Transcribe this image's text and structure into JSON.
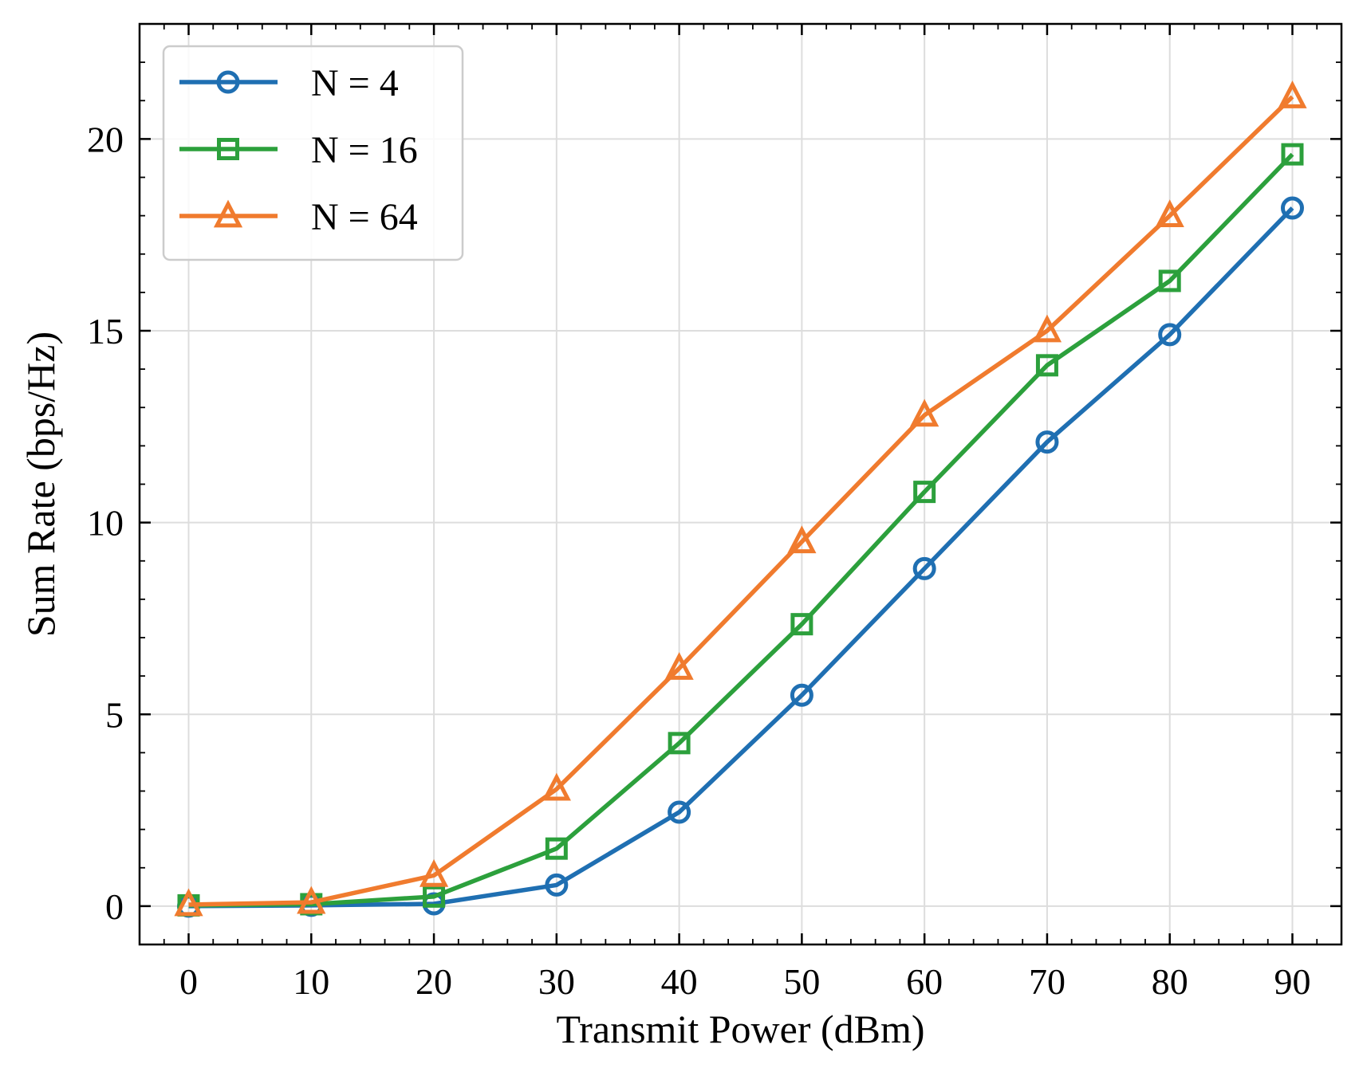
{
  "chart_data": {
    "type": "line",
    "xlabel": "Transmit Power (dBm)",
    "ylabel": "Sum Rate (bps/Hz)",
    "x": [
      0,
      10,
      20,
      30,
      40,
      50,
      60,
      70,
      80,
      90
    ],
    "xticks": [
      0,
      10,
      20,
      30,
      40,
      50,
      60,
      70,
      80,
      90
    ],
    "yticks": [
      0,
      5,
      10,
      15,
      20
    ],
    "xlim": [
      -4,
      94
    ],
    "ylim": [
      -1,
      23
    ],
    "grid": true,
    "legend_position": "top-left",
    "series": [
      {
        "name": "N = 4",
        "marker": "circle",
        "color": "#1f6fb2",
        "values": [
          0.0,
          0.02,
          0.06,
          0.55,
          2.45,
          5.5,
          8.8,
          12.1,
          14.9,
          18.2
        ]
      },
      {
        "name": "N = 16",
        "marker": "square",
        "color": "#2ca03c",
        "values": [
          0.02,
          0.05,
          0.25,
          1.5,
          4.25,
          7.35,
          10.8,
          14.1,
          16.3,
          19.6
        ]
      },
      {
        "name": "N = 64",
        "marker": "triangle",
        "color": "#f07b2e",
        "values": [
          0.04,
          0.1,
          0.8,
          3.05,
          6.2,
          9.5,
          12.8,
          15.0,
          18.0,
          21.1
        ]
      }
    ]
  }
}
